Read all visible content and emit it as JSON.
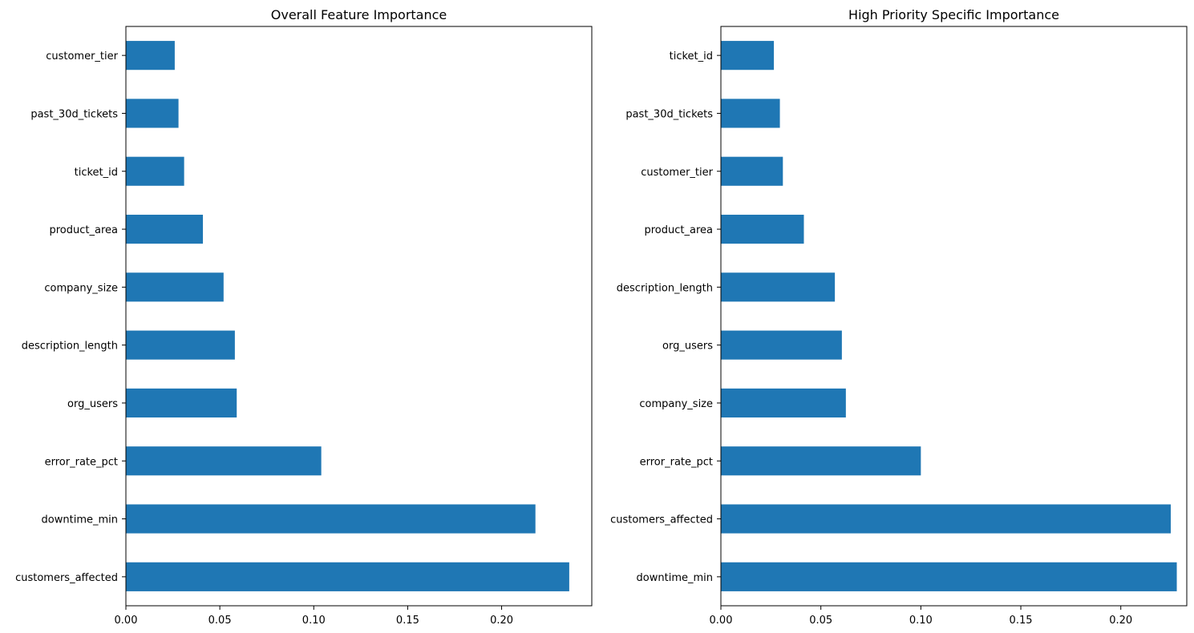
{
  "colors": {
    "bar": "#1f77b4",
    "axis": "#000000",
    "background": "#ffffff"
  },
  "chart_data": [
    {
      "type": "bar",
      "orientation": "horizontal",
      "title": "Overall Feature Importance",
      "xlabel": "",
      "ylabel": "",
      "xlim": [
        0,
        0.248
      ],
      "xticks": [
        0.0,
        0.05,
        0.1,
        0.15,
        0.2
      ],
      "xtick_labels": [
        "0.00",
        "0.05",
        "0.10",
        "0.15",
        "0.20"
      ],
      "grid": false,
      "categories": [
        "customer_tier",
        "past_30d_tickets",
        "ticket_id",
        "product_area",
        "company_size",
        "description_length",
        "org_users",
        "error_rate_pct",
        "downtime_min",
        "customers_affected"
      ],
      "values": [
        0.026,
        0.028,
        0.031,
        0.041,
        0.052,
        0.058,
        0.059,
        0.104,
        0.218,
        0.236
      ]
    },
    {
      "type": "bar",
      "orientation": "horizontal",
      "title": "High Priority Specific Importance",
      "xlabel": "",
      "ylabel": "",
      "xlim": [
        0,
        0.233
      ],
      "xticks": [
        0.0,
        0.05,
        0.1,
        0.15,
        0.2
      ],
      "xtick_labels": [
        "0.00",
        "0.05",
        "0.10",
        "0.15",
        "0.20"
      ],
      "grid": false,
      "categories": [
        "ticket_id",
        "past_30d_tickets",
        "customer_tier",
        "product_area",
        "description_length",
        "org_users",
        "company_size",
        "error_rate_pct",
        "customers_affected",
        "downtime_min"
      ],
      "values": [
        0.0265,
        0.0295,
        0.031,
        0.0415,
        0.057,
        0.0605,
        0.0625,
        0.1,
        0.225,
        0.228
      ]
    }
  ]
}
